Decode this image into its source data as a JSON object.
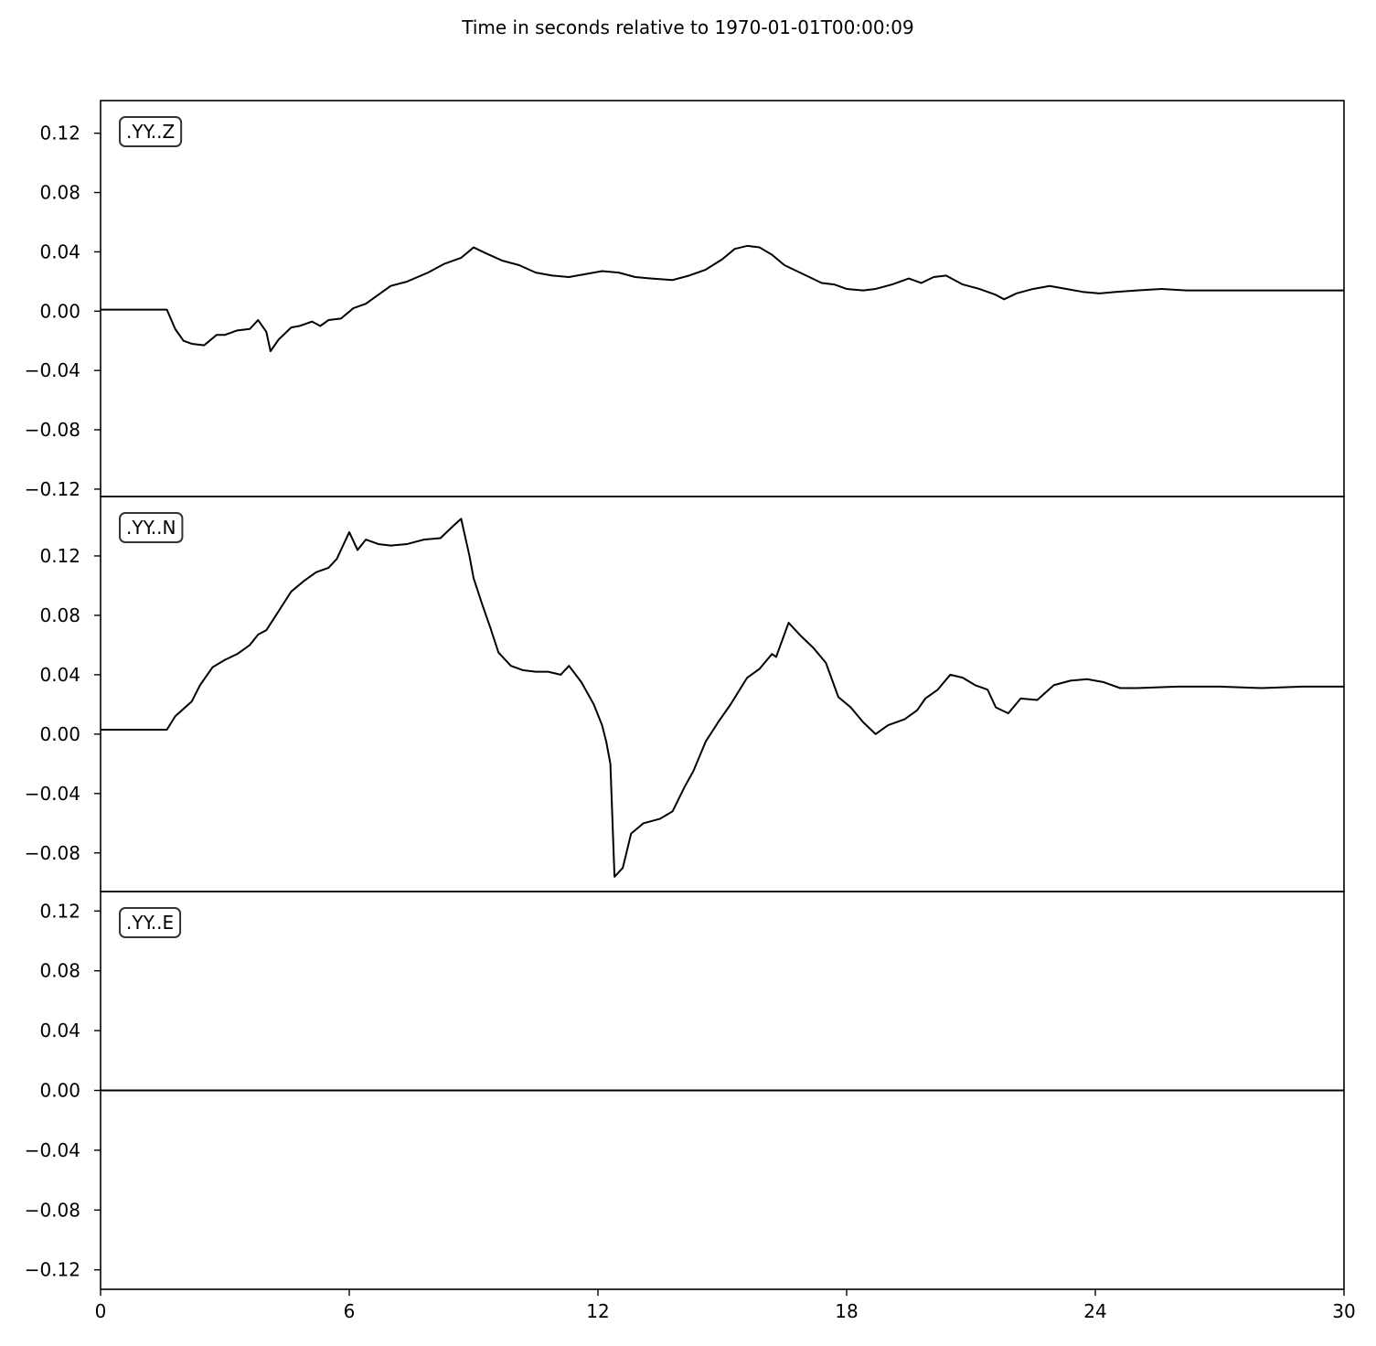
{
  "chart_data": {
    "type": "line",
    "title": "Time in seconds relative to 1970-01-01T00:00:09",
    "xlim": [
      0,
      30
    ],
    "x_ticks": [
      "0",
      "6",
      "12",
      "18",
      "24",
      "30"
    ],
    "x_tick_values": [
      0,
      6,
      12,
      18,
      24,
      30
    ],
    "grid": false,
    "line_color": "#000000",
    "panels": [
      {
        "label": ".YY..Z",
        "ylim": [
          -0.125,
          0.142
        ],
        "y_ticks": [
          "0.12",
          "0.08",
          "0.04",
          "0.00",
          "−0.04",
          "−0.08",
          "−0.12"
        ],
        "y_tick_values": [
          0.12,
          0.08,
          0.04,
          0.0,
          -0.04,
          -0.08,
          -0.12
        ],
        "series": [
          {
            "x": [
              0,
              1.6,
              1.8,
              2.0,
              2.2,
              2.5,
              2.8,
              3.0,
              3.3,
              3.6,
              3.8,
              4.0,
              4.1,
              4.3,
              4.6,
              4.8,
              5.1,
              5.3,
              5.5,
              5.8,
              6.1,
              6.4,
              6.7,
              7.0,
              7.4,
              7.9,
              8.3,
              8.7,
              9.0,
              9.3,
              9.7,
              10.1,
              10.5,
              10.9,
              11.3,
              11.7,
              12.1,
              12.5,
              12.9,
              13.3,
              13.8,
              14.2,
              14.6,
              15.0,
              15.3,
              15.6,
              15.9,
              16.2,
              16.5,
              16.8,
              17.1,
              17.4,
              17.7,
              18.0,
              18.4,
              18.7,
              19.1,
              19.5,
              19.8,
              20.1,
              20.4,
              20.8,
              21.2,
              21.6,
              21.8,
              22.1,
              22.5,
              22.9,
              23.3,
              23.7,
              24.1,
              24.5,
              25.0,
              25.6,
              26.2,
              27.0,
              28.0,
              29.0,
              30.0
            ],
            "values": [
              0.001,
              0.001,
              -0.012,
              -0.02,
              -0.022,
              -0.023,
              -0.016,
              -0.016,
              -0.013,
              -0.012,
              -0.006,
              -0.014,
              -0.027,
              -0.019,
              -0.011,
              -0.01,
              -0.007,
              -0.01,
              -0.006,
              -0.005,
              0.002,
              0.005,
              0.011,
              0.017,
              0.02,
              0.026,
              0.032,
              0.036,
              0.043,
              0.039,
              0.034,
              0.031,
              0.026,
              0.024,
              0.023,
              0.025,
              0.027,
              0.026,
              0.023,
              0.022,
              0.021,
              0.024,
              0.028,
              0.035,
              0.042,
              0.044,
              0.043,
              0.038,
              0.031,
              0.027,
              0.023,
              0.019,
              0.018,
              0.015,
              0.014,
              0.015,
              0.018,
              0.022,
              0.019,
              0.023,
              0.024,
              0.018,
              0.015,
              0.011,
              0.008,
              0.012,
              0.015,
              0.017,
              0.015,
              0.013,
              0.012,
              0.013,
              0.014,
              0.015,
              0.014,
              0.014,
              0.014,
              0.014,
              0.014
            ]
          }
        ]
      },
      {
        "label": ".YY..N",
        "ylim": [
          -0.106,
          0.16
        ],
        "y_ticks": [
          "0.12",
          "0.08",
          "0.04",
          "0.00",
          "−0.04",
          "−0.08"
        ],
        "y_tick_values": [
          0.12,
          0.08,
          0.04,
          0.0,
          -0.04,
          -0.08
        ],
        "series": [
          {
            "x": [
              0,
              1.6,
              1.8,
              2.0,
              2.2,
              2.4,
              2.7,
              3.0,
              3.3,
              3.6,
              3.8,
              4.0,
              4.3,
              4.6,
              4.9,
              5.2,
              5.5,
              5.7,
              5.9,
              6.0,
              6.2,
              6.4,
              6.7,
              7.0,
              7.4,
              7.8,
              8.2,
              8.5,
              8.7,
              8.9,
              9.0,
              9.2,
              9.4,
              9.6,
              9.9,
              10.2,
              10.5,
              10.8,
              11.1,
              11.3,
              11.6,
              11.9,
              12.1,
              12.2,
              12.3,
              12.4,
              12.6,
              12.8,
              13.1,
              13.5,
              13.8,
              14.1,
              14.3,
              14.6,
              14.9,
              15.2,
              15.6,
              15.9,
              16.2,
              16.3,
              16.6,
              16.9,
              17.2,
              17.5,
              17.8,
              18.1,
              18.4,
              18.7,
              19.0,
              19.4,
              19.7,
              19.9,
              20.2,
              20.5,
              20.8,
              21.1,
              21.4,
              21.6,
              21.9,
              22.2,
              22.6,
              23.0,
              23.4,
              23.8,
              24.2,
              24.6,
              25.0,
              26.0,
              27.0,
              28.0,
              29.0,
              30.0
            ],
            "values": [
              0.003,
              0.003,
              0.012,
              0.017,
              0.022,
              0.033,
              0.045,
              0.05,
              0.054,
              0.06,
              0.067,
              0.07,
              0.083,
              0.096,
              0.103,
              0.109,
              0.112,
              0.118,
              0.13,
              0.136,
              0.124,
              0.131,
              0.128,
              0.127,
              0.128,
              0.131,
              0.132,
              0.14,
              0.145,
              0.12,
              0.105,
              0.088,
              0.072,
              0.055,
              0.046,
              0.043,
              0.042,
              0.042,
              0.04,
              0.046,
              0.035,
              0.02,
              0.006,
              -0.005,
              -0.02,
              -0.096,
              -0.09,
              -0.067,
              -0.06,
              -0.057,
              -0.052,
              -0.035,
              -0.025,
              -0.005,
              0.008,
              0.02,
              0.038,
              0.044,
              0.054,
              0.052,
              0.075,
              0.066,
              0.058,
              0.048,
              0.025,
              0.018,
              0.008,
              0.0,
              0.006,
              0.01,
              0.016,
              0.024,
              0.03,
              0.04,
              0.038,
              0.033,
              0.03,
              0.018,
              0.014,
              0.024,
              0.023,
              0.033,
              0.036,
              0.037,
              0.035,
              0.031,
              0.031,
              0.032,
              0.032,
              0.031,
              0.032,
              0.032
            ]
          }
        ]
      },
      {
        "label": ".YY..E",
        "ylim": [
          -0.133,
          0.133
        ],
        "y_ticks": [
          "0.12",
          "0.08",
          "0.04",
          "0.00",
          "−0.04",
          "−0.08",
          "−0.12"
        ],
        "y_tick_values": [
          0.12,
          0.08,
          0.04,
          0.0,
          -0.04,
          -0.08,
          -0.12
        ],
        "series": [
          {
            "x": [
              0,
              30
            ],
            "values": [
              0.0,
              0.0
            ]
          }
        ]
      }
    ]
  }
}
